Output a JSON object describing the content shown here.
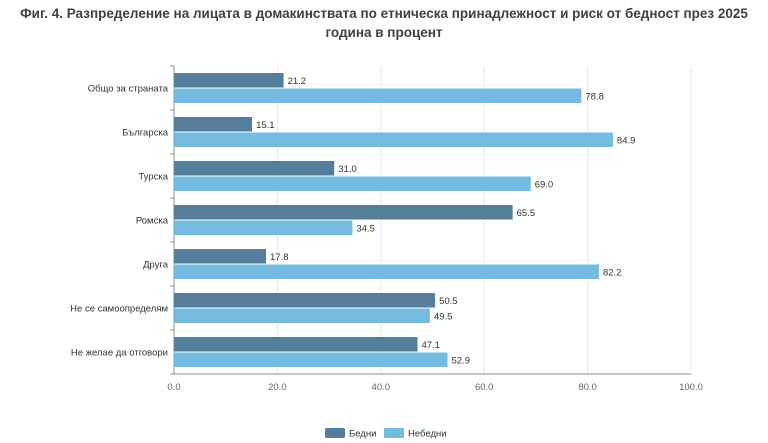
{
  "title_lines": [
    "Фиг. 4. Разпределение на лицата в домакинствата по етническа принадлежност и риск от бедност през 2025",
    "година в процент"
  ],
  "chart_data": {
    "type": "bar",
    "orientation": "horizontal",
    "title": "Фиг. 4. Разпределение на лицата в домакинствата по етническа принадлежност и риск от бедност през 2025 година в процент",
    "categories": [
      "Общо за страната",
      "Българска",
      "Турска",
      "Ромска",
      "Друга",
      "Не се самоопределям",
      "Не желае да отговори"
    ],
    "series": [
      {
        "name": "Бедни",
        "color": "#547e9c",
        "values": [
          21.2,
          15.1,
          31.0,
          65.5,
          17.8,
          50.5,
          47.1
        ]
      },
      {
        "name": "Небедни",
        "color": "#74bbe0",
        "values": [
          78.8,
          84.9,
          69.0,
          34.5,
          82.2,
          49.5,
          52.9
        ]
      }
    ],
    "xlim": [
      0,
      100
    ],
    "xticks": [
      0,
      20,
      40,
      60,
      80,
      100
    ],
    "xtick_labels": [
      "0.0",
      "20.0",
      "40.0",
      "60.0",
      "80.0",
      "100.0"
    ],
    "grid": true,
    "legend": "bottom-center"
  }
}
